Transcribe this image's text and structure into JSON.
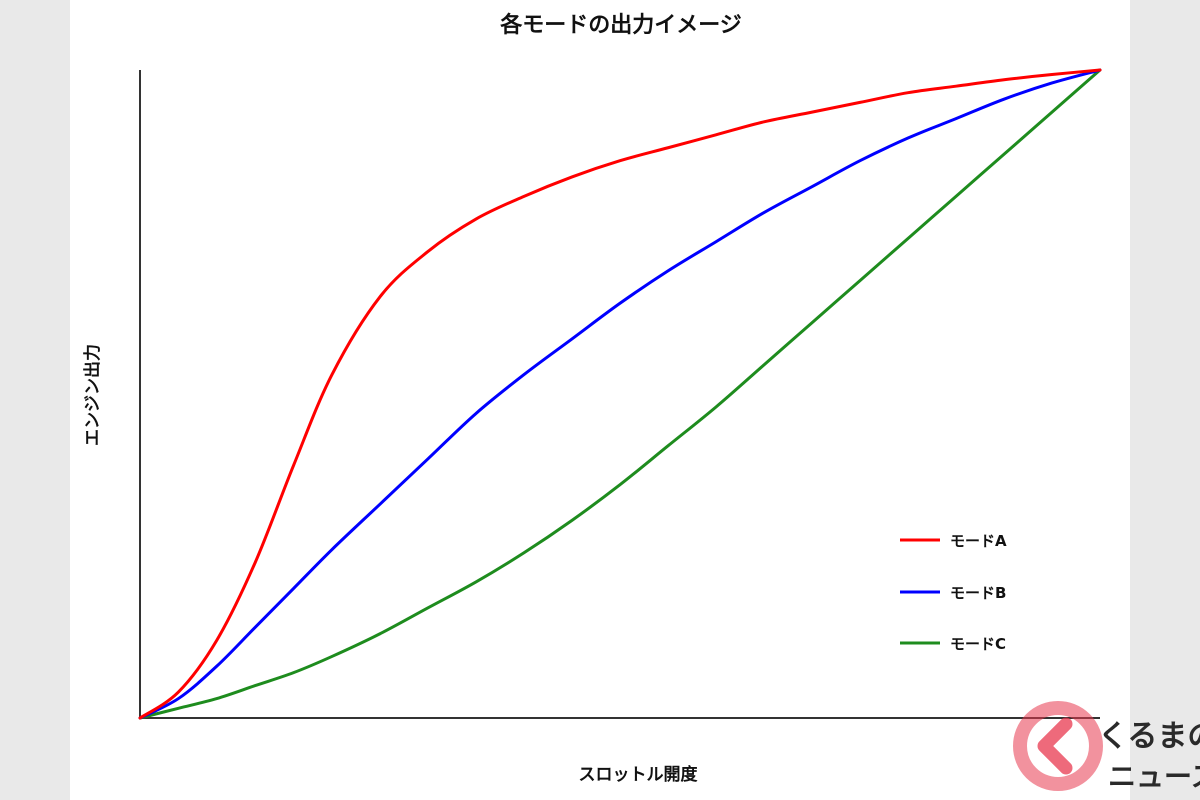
{
  "chart_data": {
    "type": "line",
    "title": "各モードの出力イメージ",
    "xlabel": "スロットル開度",
    "ylabel": "エンジン出力",
    "xlim": [
      0,
      100
    ],
    "ylim": [
      0,
      100
    ],
    "grid": false,
    "legend_position": "bottom-right",
    "series": [
      {
        "name": "モードA",
        "color": "#ff0000",
        "x": [
          0,
          4,
          8,
          12,
          16,
          20,
          25,
          30,
          35,
          40,
          45,
          50,
          55,
          60,
          65,
          70,
          75,
          80,
          85,
          90,
          95,
          100
        ],
        "y": [
          0,
          4,
          12,
          24,
          39,
          53,
          65,
          72,
          77,
          80.5,
          83.5,
          86,
          88,
          90,
          92,
          93.5,
          95,
          96.5,
          97.5,
          98.5,
          99.3,
          100
        ]
      },
      {
        "name": "モードB",
        "color": "#0000ff",
        "x": [
          0,
          4,
          8,
          12,
          16,
          20,
          25,
          30,
          35,
          40,
          45,
          50,
          55,
          60,
          65,
          70,
          75,
          80,
          85,
          90,
          95,
          100
        ],
        "y": [
          0,
          3,
          8,
          14,
          20,
          26,
          33,
          40,
          47,
          53,
          58.5,
          64,
          69,
          73.5,
          78,
          82,
          86,
          89.5,
          92.5,
          95.5,
          98,
          100
        ]
      },
      {
        "name": "モードC",
        "color": "#1e8c1e",
        "x": [
          0,
          4,
          8,
          12,
          16,
          20,
          25,
          30,
          35,
          40,
          45,
          50,
          55,
          60,
          65,
          70,
          75,
          80,
          85,
          90,
          95,
          100
        ],
        "y": [
          0,
          1.5,
          3,
          5,
          7,
          9.5,
          13,
          17,
          21,
          25.5,
          30.5,
          36,
          42,
          48,
          54.5,
          61,
          67.5,
          74,
          80.5,
          87,
          93.5,
          100
        ]
      }
    ]
  },
  "watermark": {
    "brand_top": "くるまの",
    "brand_bottom": "ニュース",
    "color": "#e8384f"
  }
}
